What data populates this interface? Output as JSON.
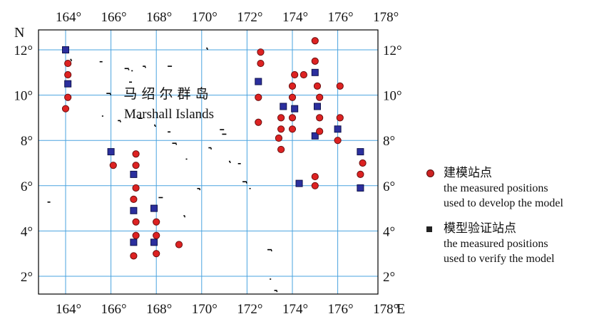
{
  "map": {
    "top_ticks": [
      "164°",
      "166°",
      "168°",
      "170°",
      "172°",
      "174°",
      "176°",
      "178°"
    ],
    "bottom_ticks": [
      "164°",
      "166°",
      "168°",
      "170°",
      "172°",
      "174°",
      "176°",
      "178°"
    ],
    "left_ticks": [
      "12°",
      "10°",
      "8°",
      "6°",
      "4°",
      "2°"
    ],
    "right_ticks": [
      "12°",
      "10°",
      "8°",
      "6°",
      "4°",
      "2°"
    ],
    "north_label": "N",
    "east_label": "E",
    "title_cn": "马 绍 尔 群 岛",
    "title_en": "Marshall Islands",
    "lon_range": [
      163,
      178
    ],
    "lat_range": [
      1,
      13
    ],
    "grid": true,
    "colors": {
      "grid": "#4aa3df",
      "circle_fill": "#dd2222",
      "circle_stroke": "#6a0f0f",
      "square_fill": "#2b2f9e",
      "square_stroke": "#10134d",
      "frame": "#000000"
    }
  },
  "stations": {
    "model": [
      {
        "lon": 164.1,
        "lat": 11.4
      },
      {
        "lon": 164.1,
        "lat": 10.9
      },
      {
        "lon": 164.1,
        "lat": 9.9
      },
      {
        "lon": 164.0,
        "lat": 9.4
      },
      {
        "lon": 166.1,
        "lat": 6.9
      },
      {
        "lon": 167.1,
        "lat": 7.4
      },
      {
        "lon": 167.1,
        "lat": 6.9
      },
      {
        "lon": 167.1,
        "lat": 5.9
      },
      {
        "lon": 167.0,
        "lat": 5.4
      },
      {
        "lon": 167.1,
        "lat": 4.4
      },
      {
        "lon": 167.1,
        "lat": 3.8
      },
      {
        "lon": 167.0,
        "lat": 2.9
      },
      {
        "lon": 168.0,
        "lat": 4.4
      },
      {
        "lon": 168.0,
        "lat": 3.8
      },
      {
        "lon": 168.0,
        "lat": 3.0
      },
      {
        "lon": 169.0,
        "lat": 3.4
      },
      {
        "lon": 172.6,
        "lat": 11.9
      },
      {
        "lon": 172.6,
        "lat": 11.4
      },
      {
        "lon": 172.5,
        "lat": 9.9
      },
      {
        "lon": 172.5,
        "lat": 8.8
      },
      {
        "lon": 173.5,
        "lat": 9.0
      },
      {
        "lon": 173.5,
        "lat": 8.5
      },
      {
        "lon": 173.4,
        "lat": 8.1
      },
      {
        "lon": 173.5,
        "lat": 7.6
      },
      {
        "lon": 174.1,
        "lat": 10.9
      },
      {
        "lon": 174.0,
        "lat": 10.4
      },
      {
        "lon": 174.0,
        "lat": 9.9
      },
      {
        "lon": 174.0,
        "lat": 9.0
      },
      {
        "lon": 174.0,
        "lat": 8.5
      },
      {
        "lon": 174.5,
        "lat": 10.9
      },
      {
        "lon": 175.0,
        "lat": 12.4
      },
      {
        "lon": 175.0,
        "lat": 11.5
      },
      {
        "lon": 175.1,
        "lat": 10.4
      },
      {
        "lon": 175.2,
        "lat": 9.9
      },
      {
        "lon": 175.2,
        "lat": 9.0
      },
      {
        "lon": 175.2,
        "lat": 8.4
      },
      {
        "lon": 175.0,
        "lat": 6.4
      },
      {
        "lon": 175.0,
        "lat": 6.0
      },
      {
        "lon": 176.1,
        "lat": 10.4
      },
      {
        "lon": 176.1,
        "lat": 9.0
      },
      {
        "lon": 176.0,
        "lat": 8.0
      },
      {
        "lon": 177.1,
        "lat": 7.0
      },
      {
        "lon": 177.0,
        "lat": 6.5
      }
    ],
    "verify": [
      {
        "lon": 164.0,
        "lat": 12.0
      },
      {
        "lon": 164.1,
        "lat": 10.5
      },
      {
        "lon": 166.0,
        "lat": 7.5
      },
      {
        "lon": 167.0,
        "lat": 6.5
      },
      {
        "lon": 167.0,
        "lat": 4.9
      },
      {
        "lon": 167.0,
        "lat": 3.5
      },
      {
        "lon": 167.9,
        "lat": 5.0
      },
      {
        "lon": 167.9,
        "lat": 3.5
      },
      {
        "lon": 172.5,
        "lat": 10.6
      },
      {
        "lon": 173.6,
        "lat": 9.5
      },
      {
        "lon": 174.1,
        "lat": 9.4
      },
      {
        "lon": 174.3,
        "lat": 6.1
      },
      {
        "lon": 175.0,
        "lat": 11.0
      },
      {
        "lon": 175.1,
        "lat": 9.5
      },
      {
        "lon": 175.0,
        "lat": 8.2
      },
      {
        "lon": 176.0,
        "lat": 8.5
      },
      {
        "lon": 177.0,
        "lat": 7.5
      },
      {
        "lon": 177.0,
        "lat": 5.9
      }
    ]
  },
  "islands": [
    {
      "lon": 164.2,
      "lat": 11.6
    },
    {
      "lon": 165.5,
      "lat": 11.5
    },
    {
      "lon": 166.6,
      "lat": 11.2
    },
    {
      "lon": 166.9,
      "lat": 11.1
    },
    {
      "lon": 167.4,
      "lat": 11.3
    },
    {
      "lon": 168.5,
      "lat": 11.3
    },
    {
      "lon": 170.2,
      "lat": 12.1
    },
    {
      "lon": 166.8,
      "lat": 10.6
    },
    {
      "lon": 165.8,
      "lat": 10.1
    },
    {
      "lon": 165.6,
      "lat": 9.1
    },
    {
      "lon": 166.3,
      "lat": 8.9
    },
    {
      "lon": 167.2,
      "lat": 9.0
    },
    {
      "lon": 167.9,
      "lat": 8.7
    },
    {
      "lon": 168.5,
      "lat": 8.4
    },
    {
      "lon": 168.7,
      "lat": 7.9
    },
    {
      "lon": 169.3,
      "lat": 7.2
    },
    {
      "lon": 170.3,
      "lat": 7.7
    },
    {
      "lon": 170.9,
      "lat": 8.3
    },
    {
      "lon": 171.2,
      "lat": 7.1
    },
    {
      "lon": 171.6,
      "lat": 7.0
    },
    {
      "lon": 171.8,
      "lat": 6.2
    },
    {
      "lon": 172.1,
      "lat": 5.9
    },
    {
      "lon": 169.8,
      "lat": 5.9
    },
    {
      "lon": 168.1,
      "lat": 5.5
    },
    {
      "lon": 169.2,
      "lat": 4.7
    },
    {
      "lon": 163.2,
      "lat": 5.3
    },
    {
      "lon": 172.9,
      "lat": 3.2
    },
    {
      "lon": 173.0,
      "lat": 1.9
    },
    {
      "lon": 173.2,
      "lat": 1.4
    },
    {
      "lon": 170.8,
      "lat": 8.5
    }
  ],
  "legend": {
    "model_title": "建模站点",
    "model_desc_1": "the measured positions",
    "model_desc_2": "used to develop the model",
    "verify_title": "模型验证站点",
    "verify_desc_1": "the measured positions",
    "verify_desc_2": "used to verify the model"
  }
}
